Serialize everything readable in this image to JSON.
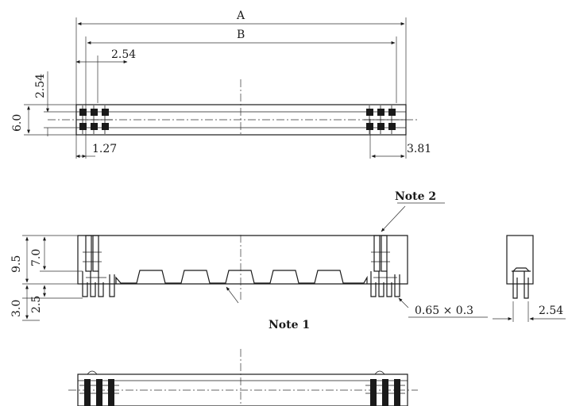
{
  "top_view": {
    "dims": {
      "A": "A",
      "B": "B",
      "pitch": "2.54",
      "offset_left": "1.27",
      "offset_right": "3.81",
      "height": "6.0",
      "row_pitch": "2.54"
    }
  },
  "side_view": {
    "dims": {
      "total_height": "9.5",
      "body_height": "7.0",
      "tail_length": "3.0",
      "tail_short": "2.5",
      "pin_size": "0.65 × 0.3"
    },
    "note_top": "Note 2",
    "note_bottom": "Note 1"
  },
  "end_view": {
    "dims": {
      "pitch": "2.54"
    }
  }
}
